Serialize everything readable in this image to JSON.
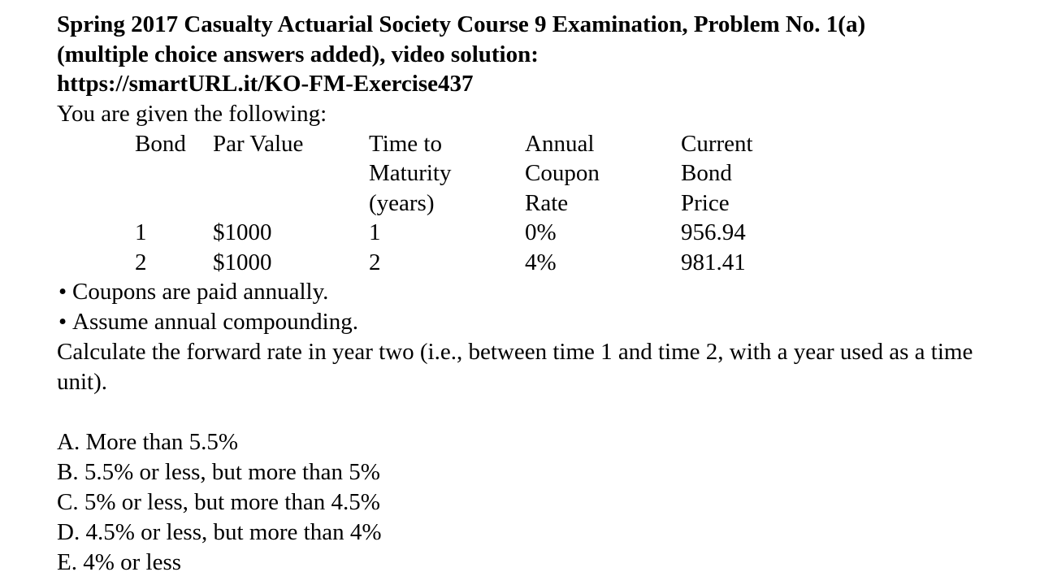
{
  "title": {
    "line1": "Spring 2017 Casualty Actuarial Society Course 9 Examination, Problem No. 1(a)",
    "line2": "(multiple choice answers added), video solution:",
    "line3": "https://smartURL.it/KO-FM-Exercise437"
  },
  "intro": "You are given the following:",
  "table": {
    "headers": [
      [
        "Bond"
      ],
      [
        "Par Value"
      ],
      [
        "Time to",
        "Maturity",
        "(years)"
      ],
      [
        "Annual",
        "Coupon",
        "Rate"
      ],
      [
        "Current",
        "Bond",
        "Price"
      ]
    ],
    "rows": [
      [
        "1",
        "$1000",
        "1",
        "0%",
        "956.94"
      ],
      [
        "2",
        "$1000",
        "2",
        "4%",
        "981.41"
      ]
    ]
  },
  "bullets": [
    "Coupons are paid annually.",
    "Assume annual compounding."
  ],
  "question": "Calculate the forward rate in year two (i.e., between time 1 and time 2, with a year used as a time unit).",
  "choices": [
    "A. More than 5.5%",
    "B. 5.5% or less, but more than 5%",
    "C. 5% or less, but more than 4.5%",
    "D. 4.5% or less, but more than 4%",
    "E. 4% or less"
  ]
}
